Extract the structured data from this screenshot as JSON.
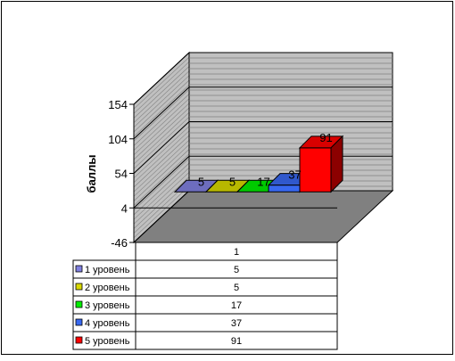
{
  "chart_data": {
    "type": "bar",
    "ylabel": "баллы",
    "ylim": [
      -46,
      154
    ],
    "yticks": [
      154,
      104,
      54,
      4,
      -46
    ],
    "categories": [
      "1"
    ],
    "series": [
      {
        "name": "1 уровень",
        "values": [
          5
        ],
        "color": "#8080e0"
      },
      {
        "name": "2 уровень",
        "values": [
          5
        ],
        "color": "#d8d800"
      },
      {
        "name": "3 уровень",
        "values": [
          17
        ],
        "color": "#00ee00"
      },
      {
        "name": "4 уровень",
        "values": [
          37
        ],
        "color": "#3868f0"
      },
      {
        "name": "5 уровень",
        "values": [
          91
        ],
        "color": "#ff0000"
      }
    ],
    "style": "3d-column",
    "grid": true,
    "legend": "data-table-bottom"
  }
}
